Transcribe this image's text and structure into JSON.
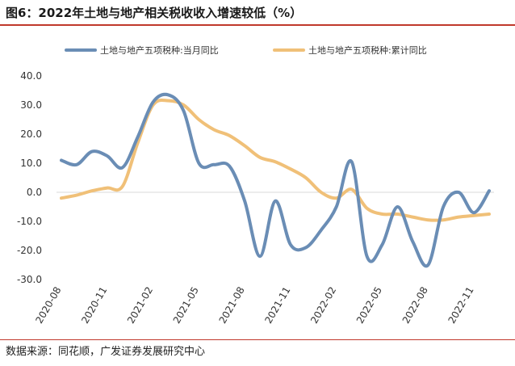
{
  "title": "图6：2022年土地与地产相关税收收入增速较低（%）",
  "source": "数据来源：同花顺，广发证券发展研究中心",
  "colors": {
    "series1": "#6a8db5",
    "series2": "#f0c078",
    "accent": "#c0392b",
    "zero": "#d9d9d9"
  },
  "chart_data": {
    "type": "line",
    "title": "图6：2022年土地与地产相关税收收入增速较低（%）",
    "xlabel": "",
    "ylabel": "",
    "ylim": [
      -30,
      40
    ],
    "yticks": [
      "40.0",
      "30.0",
      "20.0",
      "10.0",
      "0.0",
      "-10.0",
      "-20.0",
      "-30.0"
    ],
    "xticks": [
      "2020-08",
      "2020-11",
      "2021-02",
      "2021-05",
      "2021-08",
      "2021-11",
      "2022-02",
      "2022-05",
      "2022-08",
      "2022-11"
    ],
    "x": [
      "2020-08",
      "2020-09",
      "2020-10",
      "2020-11",
      "2020-12",
      "2021-01",
      "2021-02",
      "2021-03",
      "2021-04",
      "2021-05",
      "2021-06",
      "2021-07",
      "2021-08",
      "2021-09",
      "2021-10",
      "2021-11",
      "2021-12",
      "2022-01",
      "2022-02",
      "2022-03",
      "2022-04",
      "2022-05",
      "2022-06",
      "2022-07",
      "2022-08",
      "2022-09",
      "2022-10",
      "2022-11",
      "2022-12"
    ],
    "series": [
      {
        "name": "土地与地产五项税种:当月同比",
        "values": [
          11,
          9.5,
          14,
          12.5,
          8.5,
          19,
          31,
          33.5,
          28,
          10,
          9.5,
          9,
          -3,
          -22,
          -3,
          -18,
          -19,
          -13,
          -5,
          10.5,
          -22,
          -18,
          -5,
          -17,
          -25,
          -5,
          0,
          -7,
          0.5
        ]
      },
      {
        "name": "土地与地产五项税种:累计同比",
        "values": [
          -2,
          -1,
          0.5,
          1.5,
          2,
          17,
          30,
          31.5,
          30,
          25,
          21.5,
          19.5,
          16,
          12,
          10.5,
          8,
          5,
          0,
          -2,
          1,
          -5.5,
          -7.5,
          -7.5,
          -8.5,
          -9.5,
          -9.5,
          -8.5,
          -8,
          -7.5
        ]
      }
    ],
    "legend_position": "top",
    "grid": false
  }
}
